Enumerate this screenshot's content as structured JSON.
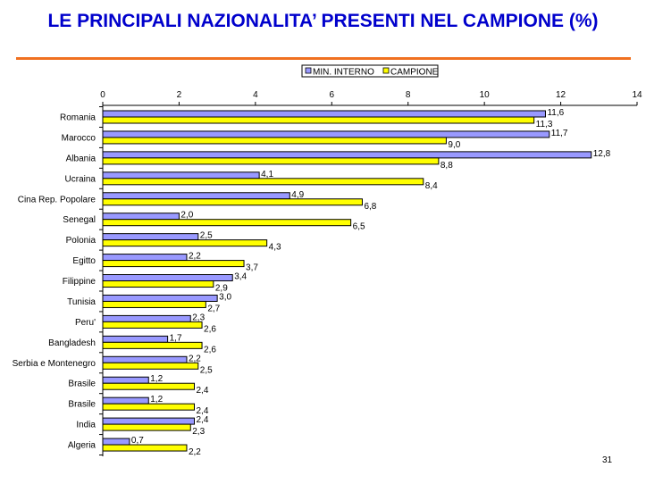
{
  "page_number": "31",
  "colors": {
    "title": "#0000cc",
    "rule": "#f07020",
    "min_interno": "#9999ff",
    "campione": "#ffff00"
  },
  "chart_data": {
    "type": "bar",
    "orientation": "horizontal",
    "title": "LE PRINCIPALI NAZIONALITA’ PRESENTI NEL CAMPIONE (%)",
    "categories": [
      "Romania",
      "Marocco",
      "Albania",
      "Ucraina",
      "Cina Rep. Popolare",
      "Senegal",
      "Polonia",
      "Egitto",
      "Filippine",
      "Tunisia",
      "Peru'",
      "Bangladesh",
      "Serbia e Montenegro",
      "Brasile",
      "Brasile",
      "India",
      "Algeria"
    ],
    "series": [
      {
        "name": "MIN. INTERNO",
        "values": [
          11.6,
          11.7,
          12.8,
          4.1,
          4.9,
          2.0,
          2.5,
          2.2,
          3.4,
          3.0,
          2.3,
          1.7,
          2.2,
          1.2,
          1.2,
          2.4,
          0.7
        ],
        "labels": [
          "11,6",
          "11,7",
          "12,8",
          "4,1",
          "4,9",
          "2,0",
          "2,5",
          "2,2",
          "3,4",
          "3,0",
          "2,3",
          "1,7",
          "2,2",
          "1,2",
          "1,2",
          "2,4",
          "0,7"
        ]
      },
      {
        "name": "CAMPIONE",
        "values": [
          11.3,
          9.0,
          8.8,
          8.4,
          6.8,
          6.5,
          4.3,
          3.7,
          2.9,
          2.7,
          2.6,
          2.6,
          2.5,
          2.4,
          2.4,
          2.3,
          2.2
        ],
        "labels": [
          "11,3",
          "9,0",
          "8,8",
          "8,4",
          "6,8",
          "6,5",
          "4,3",
          "3,7",
          "2,9",
          "2,7",
          "2,6",
          "2,6",
          "2,5",
          "2,4",
          "2,4",
          "2,3",
          "2,2"
        ]
      }
    ],
    "xlim": [
      0,
      14
    ],
    "xticks": [
      "0",
      "2",
      "4",
      "6",
      "8",
      "10",
      "12",
      "14"
    ],
    "xaxis_position": "top",
    "legend": "top",
    "grid": false
  }
}
